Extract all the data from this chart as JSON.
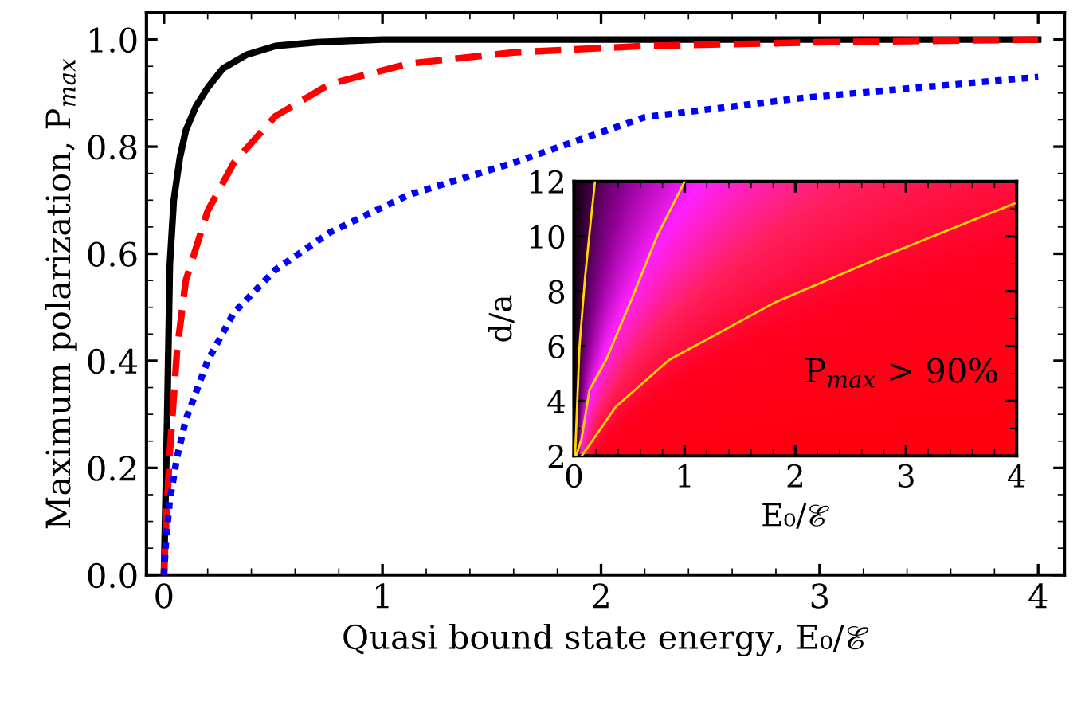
{
  "chart_data": [
    {
      "type": "line",
      "xlabel": "Quasi bound state energy, E₀/ℰ",
      "ylabel": "Maximum polarization, P$_{max}$",
      "xlim": [
        -0.08,
        4.12
      ],
      "ylim": [
        0,
        1.05
      ],
      "xticks": [
        0,
        1,
        2,
        3,
        4
      ],
      "yticks": [
        {
          "value": 0,
          "label": "0.0"
        },
        {
          "value": 0.2,
          "label": "0.2"
        },
        {
          "value": 0.4,
          "label": "0.4"
        },
        {
          "value": 0.6,
          "label": "0.6"
        },
        {
          "value": 0.8,
          "label": "0.8"
        },
        {
          "value": 1,
          "label": "1.0"
        }
      ],
      "grid": false,
      "legend": false,
      "series": [
        {
          "color": "#000000",
          "line_style": "solid",
          "x": [
            0,
            0.005,
            0.015,
            0.027,
            0.045,
            0.073,
            0.1,
            0.146,
            0.2,
            0.27,
            0.38,
            0.51,
            0.7,
            1.0,
            1.5,
            2,
            3,
            4
          ],
          "values": [
            0,
            0.1,
            0.3,
            0.58,
            0.7,
            0.78,
            0.83,
            0.875,
            0.91,
            0.946,
            0.972,
            0.988,
            0.995,
            1.0,
            1.0,
            1.0,
            1.0,
            1.0
          ]
        },
        {
          "color": "#ff0000",
          "line_style": "dashed",
          "x": [
            0,
            0.01,
            0.027,
            0.06,
            0.1,
            0.2,
            0.32,
            0.51,
            0.76,
            1.12,
            1.6,
            2.2,
            3,
            4
          ],
          "values": [
            0,
            0.1,
            0.23,
            0.42,
            0.55,
            0.68,
            0.77,
            0.857,
            0.917,
            0.955,
            0.976,
            0.988,
            0.995,
            1.0
          ]
        },
        {
          "color": "#0000ff",
          "line_style": "dotted",
          "x": [
            0,
            0.01,
            0.027,
            0.06,
            0.1,
            0.2,
            0.32,
            0.51,
            0.76,
            1.12,
            1.6,
            2.2,
            2.9,
            3.5,
            4
          ],
          "values": [
            0,
            0.07,
            0.14,
            0.22,
            0.29,
            0.4,
            0.49,
            0.57,
            0.64,
            0.71,
            0.77,
            0.855,
            0.89,
            0.912,
            0.93
          ]
        }
      ]
    },
    {
      "type": "line",
      "xlabel": "E₀/ℰ",
      "ylabel": "d/a",
      "xlim": [
        0,
        4
      ],
      "ylim": [
        2,
        12
      ],
      "xticks": [
        0,
        1,
        2,
        3,
        4
      ],
      "yticks": [
        2,
        4,
        6,
        8,
        10,
        12
      ],
      "grid": false,
      "legend": false,
      "annotations": [
        "P$_{max}$ > 90%"
      ],
      "series": [
        {
          "color": "#ffd700",
          "line_style": "solid",
          "x": [
            0.01,
            0.03,
            0.05,
            0.1,
            0.15,
            0.19
          ],
          "values": [
            2,
            4,
            6,
            8.5,
            10.5,
            12
          ]
        },
        {
          "color": "#ffd700",
          "line_style": "solid",
          "x": [
            0.02,
            0.07,
            0.14,
            0.29,
            0.53,
            0.75,
            1.0
          ],
          "values": [
            2,
            2.65,
            4.4,
            5.5,
            7.8,
            10,
            12
          ]
        },
        {
          "color": "#ffd700",
          "line_style": "solid",
          "x": [
            0.07,
            0.38,
            0.86,
            1.82,
            2.78,
            3.98
          ],
          "values": [
            2,
            3.8,
            5.5,
            7.6,
            9.25,
            11.2
          ]
        }
      ]
    }
  ]
}
